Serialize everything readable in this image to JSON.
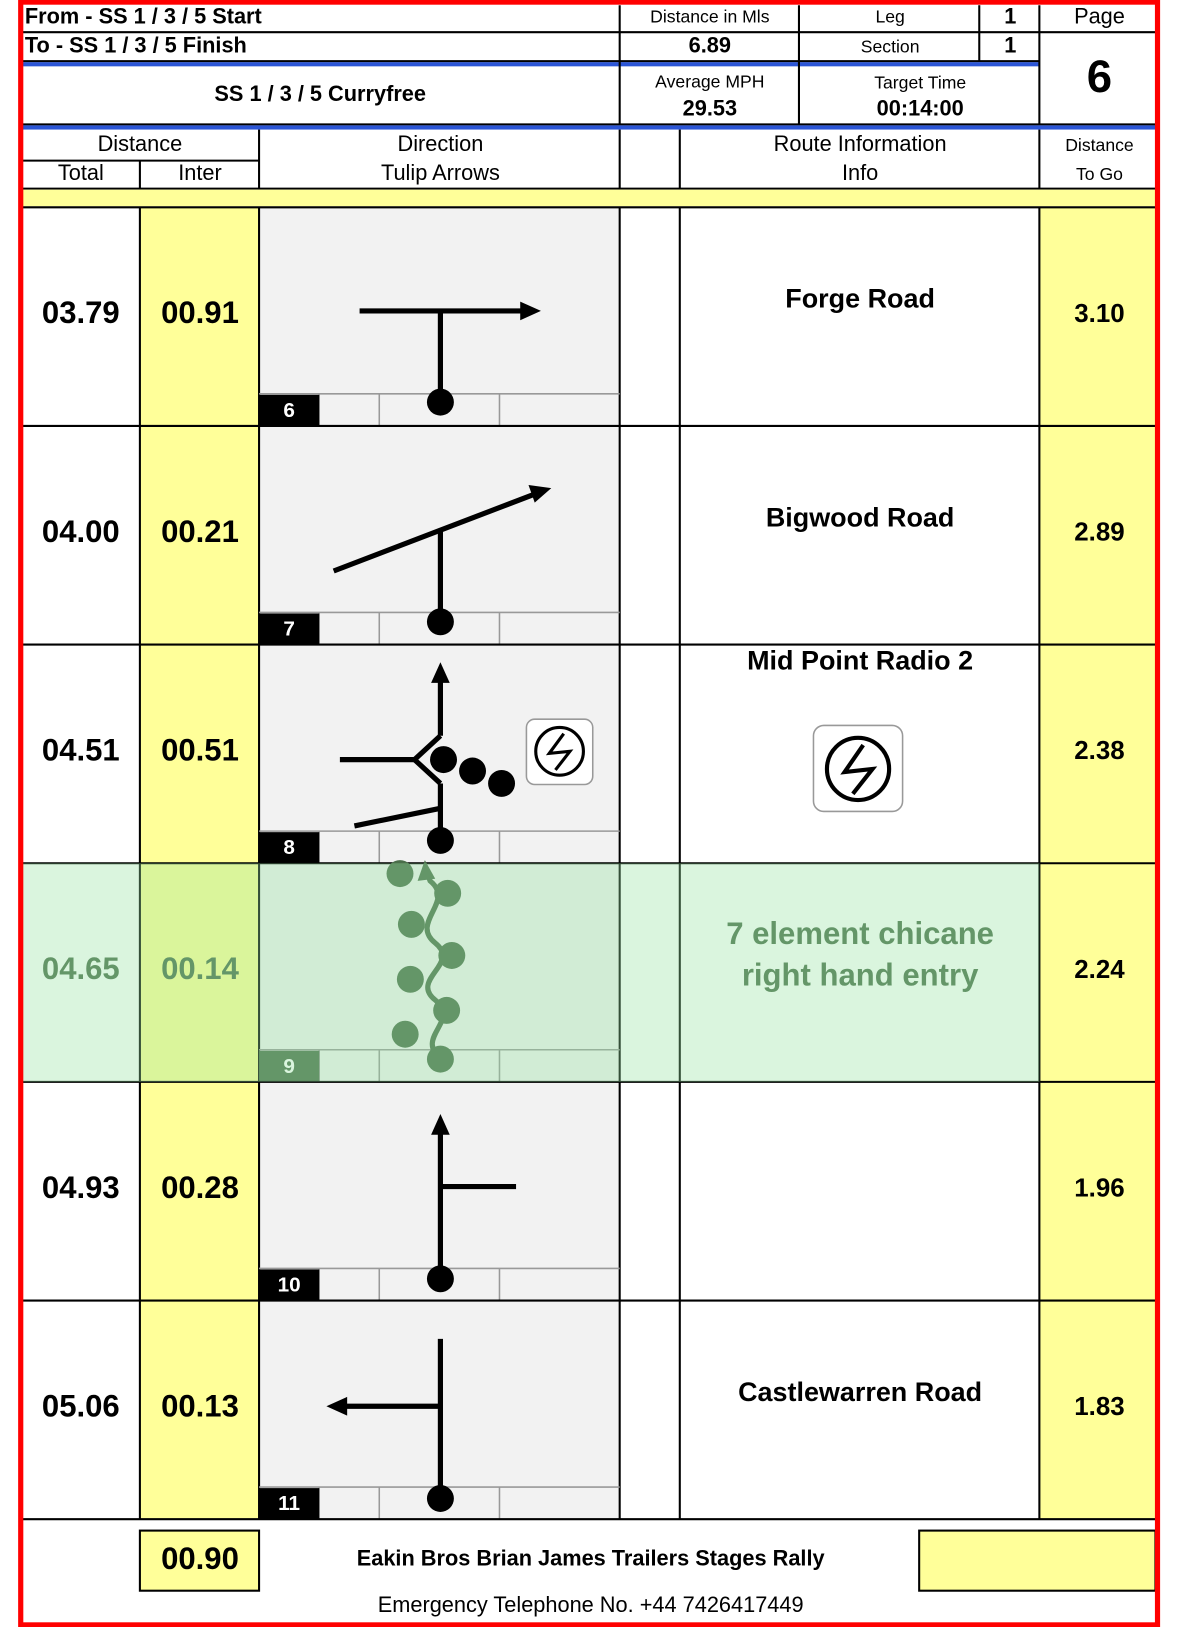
{
  "header": {
    "from": "From - SS 1 / 3 / 5  Start",
    "to": "To - SS 1 / 3 / 5  Finish",
    "distance_label": "Distance in Mls",
    "distance": "6.89",
    "leg_label": "Leg",
    "leg": "1",
    "section_label": "Section",
    "section": "1",
    "page_label": "Page",
    "page": "6",
    "stage": "SS 1 / 3 / 5 Curryfree",
    "avg_label": "Average MPH",
    "avg": "29.53",
    "target_label": "Target Time",
    "target": "00:14:00"
  },
  "columns": {
    "distance": "Distance",
    "total": "Total",
    "inter": "Inter",
    "direction": "Direction",
    "tulip": "Tulip Arrows",
    "route": "Route Information",
    "info": "Info",
    "to_go_1": "Distance",
    "to_go_2": "To Go"
  },
  "rows": [
    {
      "total": "03.79",
      "inter": "00.91",
      "number": "6",
      "info": [
        "Forge Road"
      ],
      "to_go": "3.10"
    },
    {
      "total": "04.00",
      "inter": "00.21",
      "number": "7",
      "info": [
        "Bigwood Road"
      ],
      "to_go": "2.89"
    },
    {
      "total": "04.51",
      "inter": "00.51",
      "number": "8",
      "info": [
        "Mid Point Radio 2"
      ],
      "to_go": "2.38"
    },
    {
      "total": "04.65",
      "inter": "00.14",
      "number": "9",
      "info": [
        "7 element chicane",
        "right hand entry"
      ],
      "to_go": "2.24"
    },
    {
      "total": "04.93",
      "inter": "00.28",
      "number": "10",
      "info": [],
      "to_go": "1.96"
    },
    {
      "total": "05.06",
      "inter": "00.13",
      "number": "11",
      "info": [
        "Castlewarren Road"
      ],
      "to_go": "1.83"
    }
  ],
  "footer": {
    "inter_total": "00.90",
    "event": "Eakin Bros Brian James Trailers Stages Rally",
    "emergency": "Emergency Telephone No. +44 7426417449"
  }
}
